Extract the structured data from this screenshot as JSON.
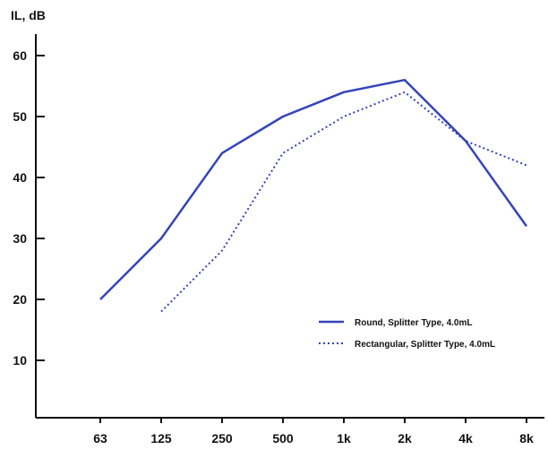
{
  "chart_data": {
    "type": "line",
    "ylabel": "IL, dB",
    "categories": [
      "63",
      "125",
      "250",
      "500",
      "1k",
      "2k",
      "4k",
      "8k"
    ],
    "yticks": [
      10,
      20,
      30,
      40,
      50,
      60
    ],
    "ylim": [
      0,
      65
    ],
    "grid": false,
    "legend_position": "lower-right",
    "series": [
      {
        "name": "Round, Splitter Type, 4.0mL",
        "style": "solid",
        "color": "#3344bb",
        "values": [
          20,
          30,
          44,
          50,
          54,
          56,
          46,
          32
        ]
      },
      {
        "name": "Rectangular, Splitter Type, 4.0mL",
        "style": "dotted",
        "color": "#3344bb",
        "values": [
          null,
          18,
          28,
          44,
          50,
          54,
          46,
          42
        ]
      }
    ]
  }
}
